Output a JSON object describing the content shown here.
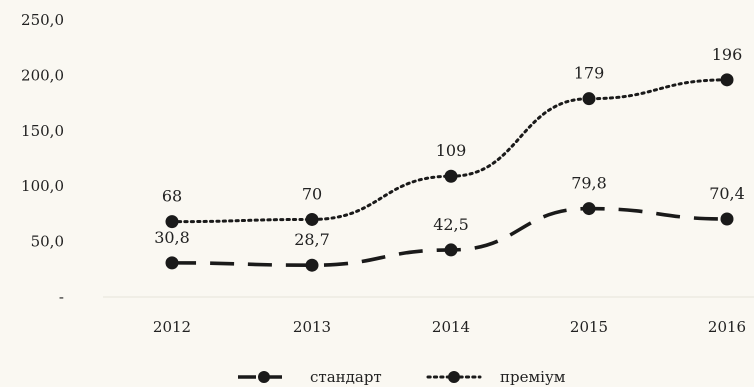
{
  "chart_data": {
    "type": "line",
    "categories": [
      "2012",
      "2013",
      "2014",
      "2015",
      "2016"
    ],
    "y_ticks": [
      "250,0",
      "200,0",
      "150,0",
      "100,0",
      "50,0",
      "-"
    ],
    "ylim": [
      0,
      250
    ],
    "grid": false,
    "legend_position": "bottom",
    "series": [
      {
        "name": "стандарт",
        "values": [
          30.8,
          28.7,
          42.5,
          79.8,
          70.4
        ],
        "labels": [
          "30,8",
          "28,7",
          "42,5",
          "79,8",
          "70,4"
        ],
        "style": "dashed",
        "color": "#1a1a1a"
      },
      {
        "name": "преміум",
        "values": [
          68,
          70,
          109,
          179,
          196
        ],
        "labels": [
          "68",
          "70",
          "109",
          "179",
          "196"
        ],
        "style": "dotted",
        "color": "#1a1a1a"
      }
    ]
  }
}
